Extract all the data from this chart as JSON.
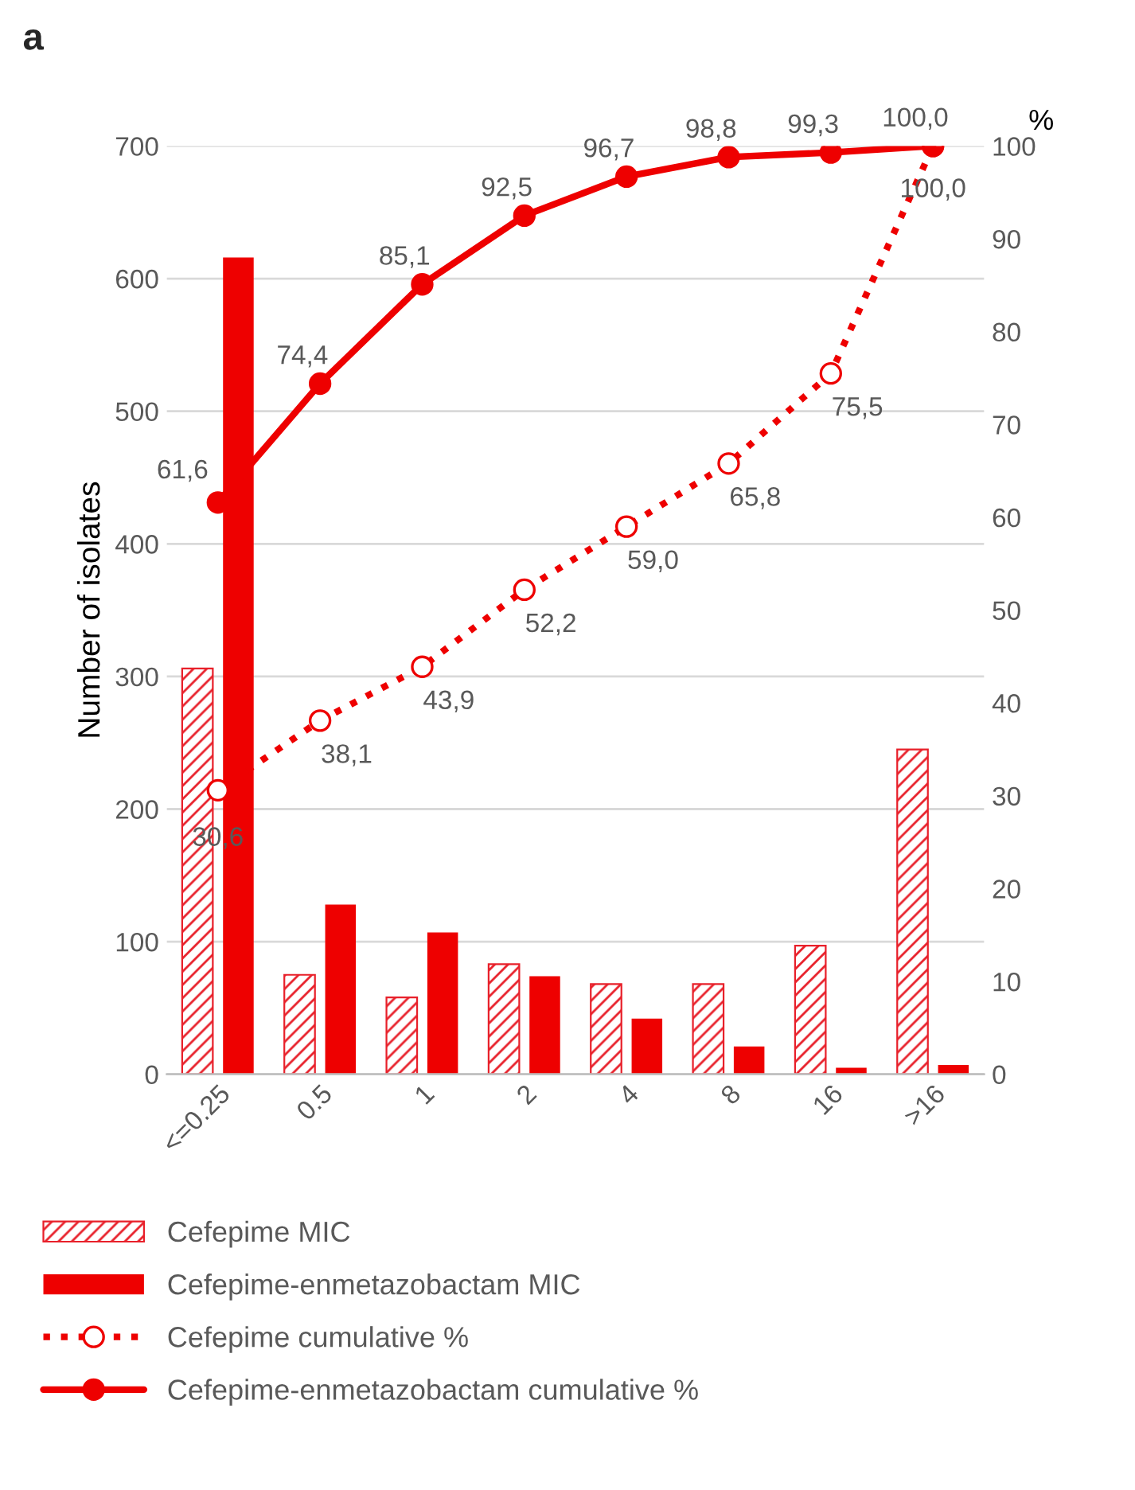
{
  "chart_data": {
    "type": "bar",
    "title": "a",
    "ylabel": "Number of isolates",
    "y2label": "%",
    "categories": [
      "<=0.25",
      "0.5",
      "1",
      "2",
      "4",
      "8",
      "16",
      ">16"
    ],
    "series": [
      {
        "name": "Cefepime MIC",
        "color": "#e8202a",
        "values": [
          306,
          75,
          58,
          83,
          68,
          68,
          97,
          245
        ]
      },
      {
        "name": "Cefepime-enmetazobactam MIC",
        "color": "#ee0000",
        "values": [
          616,
          128,
          107,
          74,
          42,
          21,
          5,
          7
        ]
      },
      {
        "name": "Cefepime cumulative %",
        "type": "line",
        "axis": "y2",
        "color": "#ee0000",
        "line_style": "dotted",
        "marker": "circle",
        "values": [
          30.6,
          38.1,
          43.9,
          52.2,
          59.0,
          65.8,
          75.5,
          100.0
        ],
        "value_labels": [
          "30,6",
          "38,1",
          "43,9",
          "52,2",
          "59,0",
          "65,8",
          "75,5",
          "100,0"
        ]
      },
      {
        "name": "Cefepime-enmetazobactam cumulative %",
        "type": "line",
        "axis": "y2",
        "color": "#ee0000",
        "line_style": "solid",
        "marker": "circle",
        "values": [
          61.6,
          74.4,
          85.1,
          92.5,
          96.7,
          98.8,
          99.3,
          100.0
        ],
        "value_labels": [
          "61,6",
          "74,4",
          "85,1",
          "92,5",
          "96,7",
          "98,8",
          "99,3",
          "100,0"
        ]
      }
    ],
    "ylim": [
      0,
      700
    ],
    "yticks": [
      0,
      100,
      200,
      300,
      400,
      500,
      600,
      700
    ],
    "y2lim": [
      0,
      100
    ],
    "y2ticks": [
      0,
      10,
      20,
      30,
      40,
      50,
      60,
      70,
      80,
      90,
      100
    ],
    "grid": "y",
    "legend": "bottom"
  }
}
